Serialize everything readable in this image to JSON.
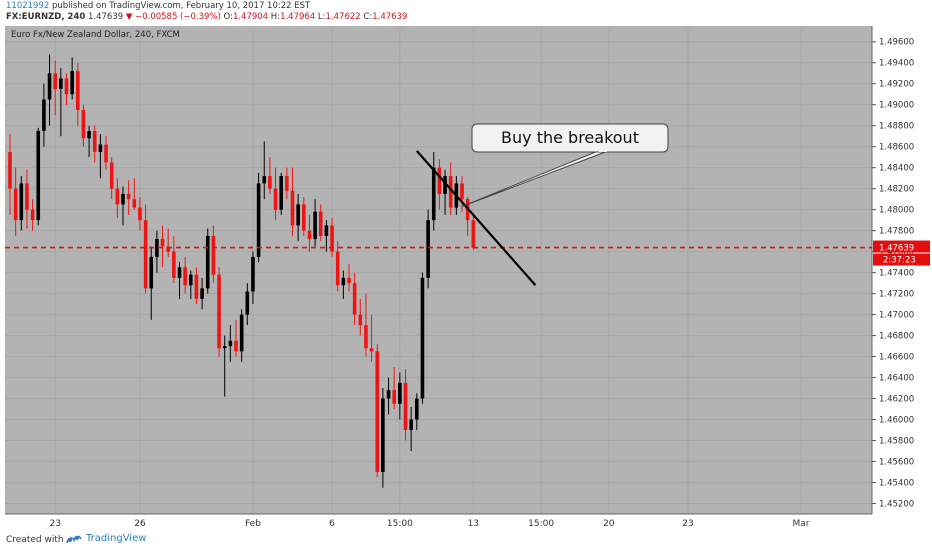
{
  "header": {
    "user_id": "11021992",
    "published_text": "published on TradingView.com, February 10, 2017 10:22 EST",
    "symbol": "FX:EURNZD, 240",
    "price": "1.47639",
    "change": "▼ −0.00585 (−0.39%)",
    "o_label": "O:",
    "o_value": "1.47904",
    "h_label": "H:",
    "h_value": "1.47964",
    "l_label": "L:",
    "l_value": "1.47622",
    "c_label": "C:",
    "c_value": "1.47639"
  },
  "footer": {
    "created_with": "Created with",
    "brand": "TradingView"
  },
  "colors": {
    "plot_bg": "#b3b3b3",
    "up": "#000000",
    "down": "#ef1414",
    "price_line": "#e30e0e",
    "grid": "#a6a6a6"
  },
  "chart_data": {
    "type": "candlestick",
    "title": "Euro Fx/New Zealand Dollar, 240, FXCM",
    "ylim": [
      1.451,
      1.4975
    ],
    "y_ticks": [
      "1.49600",
      "1.49400",
      "1.49200",
      "1.49000",
      "1.48800",
      "1.48600",
      "1.48400",
      "1.48200",
      "1.48000",
      "1.47800",
      "1.47600",
      "1.47400",
      "1.47200",
      "1.47000",
      "1.46800",
      "1.46600",
      "1.46400",
      "1.46200",
      "1.46000",
      "1.45800",
      "1.45600",
      "1.45400",
      "1.45200"
    ],
    "x_ticks": [
      {
        "label": "23",
        "bar": 8
      },
      {
        "label": "26",
        "bar": 23
      },
      {
        "label": "Feb",
        "bar": 43
      },
      {
        "label": "6",
        "bar": 57
      },
      {
        "label": "15:00",
        "bar": 69
      },
      {
        "label": "13",
        "bar": 82
      },
      {
        "label": "15:00",
        "bar": 94
      },
      {
        "label": "20",
        "bar": 106
      },
      {
        "label": "23",
        "bar": 120
      },
      {
        "label": "Mar",
        "bar": 140
      }
    ],
    "current_price": {
      "value": 1.47639,
      "label": "1.47639",
      "countdown": "2:37:23"
    },
    "candles": [
      [
        1.4855,
        1.4872,
        1.4795,
        1.482
      ],
      [
        1.482,
        1.484,
        1.4775,
        1.479
      ],
      [
        1.479,
        1.4832,
        1.478,
        1.4825
      ],
      [
        1.4825,
        1.4838,
        1.4782,
        1.48
      ],
      [
        1.48,
        1.481,
        1.478,
        1.479
      ],
      [
        1.479,
        1.4878,
        1.4785,
        1.4875
      ],
      [
        1.4875,
        1.492,
        1.486,
        1.4905
      ],
      [
        1.4905,
        1.4948,
        1.488,
        1.493
      ],
      [
        1.493,
        1.4942,
        1.489,
        1.4915
      ],
      [
        1.4915,
        1.4935,
        1.487,
        1.4925
      ],
      [
        1.4925,
        1.493,
        1.49,
        1.491
      ],
      [
        1.491,
        1.4945,
        1.4905,
        1.4932
      ],
      [
        1.4932,
        1.494,
        1.488,
        1.4895
      ],
      [
        1.4895,
        1.49,
        1.486,
        1.4868
      ],
      [
        1.4868,
        1.488,
        1.485,
        1.4875
      ],
      [
        1.4875,
        1.488,
        1.4845,
        1.4855
      ],
      [
        1.4855,
        1.4872,
        1.483,
        1.4862
      ],
      [
        1.4862,
        1.487,
        1.4838,
        1.4845
      ],
      [
        1.4845,
        1.485,
        1.481,
        1.482
      ],
      [
        1.482,
        1.483,
        1.4792,
        1.4805
      ],
      [
        1.4805,
        1.4822,
        1.4785,
        1.4815
      ],
      [
        1.4815,
        1.4828,
        1.4795,
        1.481
      ],
      [
        1.481,
        1.483,
        1.48,
        1.4802
      ],
      [
        1.4802,
        1.4812,
        1.478,
        1.479
      ],
      [
        1.479,
        1.4805,
        1.472,
        1.4725
      ],
      [
        1.4725,
        1.4765,
        1.4695,
        1.4755
      ],
      [
        1.4755,
        1.478,
        1.474,
        1.4772
      ],
      [
        1.4772,
        1.4785,
        1.4745,
        1.4765
      ],
      [
        1.4765,
        1.4782,
        1.4755,
        1.476
      ],
      [
        1.476,
        1.4775,
        1.473,
        1.4735
      ],
      [
        1.4735,
        1.475,
        1.4715,
        1.4745
      ],
      [
        1.4745,
        1.4755,
        1.472,
        1.4728
      ],
      [
        1.4728,
        1.4742,
        1.4715,
        1.4738
      ],
      [
        1.4738,
        1.4745,
        1.471,
        1.4715
      ],
      [
        1.4715,
        1.4735,
        1.4705,
        1.4725
      ],
      [
        1.4725,
        1.4782,
        1.472,
        1.4775
      ],
      [
        1.4775,
        1.4785,
        1.473,
        1.4738
      ],
      [
        1.4738,
        1.4745,
        1.466,
        1.4668
      ],
      [
        1.4668,
        1.468,
        1.4622,
        1.467
      ],
      [
        1.467,
        1.469,
        1.4655,
        1.4675
      ],
      [
        1.4675,
        1.4695,
        1.466,
        1.4665
      ],
      [
        1.4665,
        1.4705,
        1.4655,
        1.47
      ],
      [
        1.47,
        1.473,
        1.469,
        1.4722
      ],
      [
        1.4722,
        1.476,
        1.471,
        1.4755
      ],
      [
        1.4755,
        1.4835,
        1.475,
        1.4825
      ],
      [
        1.4825,
        1.4865,
        1.481,
        1.4832
      ],
      [
        1.4832,
        1.485,
        1.4815,
        1.482
      ],
      [
        1.482,
        1.484,
        1.479,
        1.48
      ],
      [
        1.48,
        1.4835,
        1.4795,
        1.4832
      ],
      [
        1.4832,
        1.484,
        1.481,
        1.4818
      ],
      [
        1.4818,
        1.484,
        1.4775,
        1.4785
      ],
      [
        1.4785,
        1.4815,
        1.477,
        1.4805
      ],
      [
        1.4805,
        1.4812,
        1.4775,
        1.478
      ],
      [
        1.478,
        1.4795,
        1.476,
        1.4772
      ],
      [
        1.4772,
        1.481,
        1.4765,
        1.4798
      ],
      [
        1.4798,
        1.4805,
        1.477,
        1.4775
      ],
      [
        1.4775,
        1.479,
        1.476,
        1.4785
      ],
      [
        1.4785,
        1.4792,
        1.4755,
        1.476
      ],
      [
        1.476,
        1.477,
        1.4722,
        1.4728
      ],
      [
        1.4728,
        1.4742,
        1.4715,
        1.4735
      ],
      [
        1.4735,
        1.4748,
        1.4722,
        1.473
      ],
      [
        1.473,
        1.474,
        1.469,
        1.47
      ],
      [
        1.47,
        1.4715,
        1.468,
        1.469
      ],
      [
        1.469,
        1.472,
        1.466,
        1.4668
      ],
      [
        1.4668,
        1.47,
        1.4655,
        1.4665
      ],
      [
        1.4665,
        1.4672,
        1.4545,
        1.455
      ],
      [
        1.455,
        1.463,
        1.4535,
        1.462
      ],
      [
        1.462,
        1.464,
        1.4605,
        1.4628
      ],
      [
        1.4628,
        1.465,
        1.461,
        1.4615
      ],
      [
        1.4615,
        1.4645,
        1.46,
        1.4635
      ],
      [
        1.4635,
        1.4648,
        1.458,
        1.459
      ],
      [
        1.459,
        1.4612,
        1.457,
        1.46
      ],
      [
        1.46,
        1.4625,
        1.459,
        1.462
      ],
      [
        1.462,
        1.474,
        1.4615,
        1.4735
      ],
      [
        1.4735,
        1.48,
        1.4725,
        1.479
      ],
      [
        1.479,
        1.4855,
        1.478,
        1.484
      ],
      [
        1.484,
        1.4848,
        1.48,
        1.4815
      ],
      [
        1.4815,
        1.4838,
        1.4795,
        1.4832
      ],
      [
        1.4832,
        1.4845,
        1.4795,
        1.4802
      ],
      [
        1.4802,
        1.4832,
        1.4795,
        1.4825
      ],
      [
        1.4825,
        1.4832,
        1.4798,
        1.481
      ],
      [
        1.481,
        1.4812,
        1.4775,
        1.479
      ],
      [
        1.479,
        1.4796,
        1.4762,
        1.47639
      ]
    ],
    "annotations": [
      {
        "type": "trendline",
        "from": [
          72,
          1.4856
        ],
        "to": [
          93,
          1.4728
        ]
      },
      {
        "type": "callout",
        "text": "Buy the breakout",
        "anchor": [
          80,
          1.4803
        ]
      }
    ]
  }
}
